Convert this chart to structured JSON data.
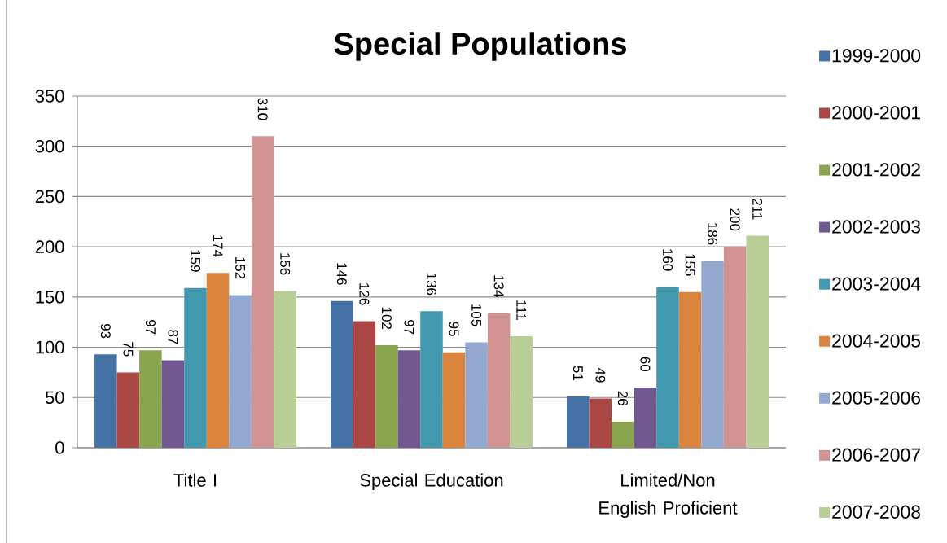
{
  "chart_data": {
    "type": "bar",
    "title": "Special Populations",
    "categories": [
      "Title I",
      "Special Education",
      "Limited/Non English Proficient"
    ],
    "series": [
      {
        "name": "1999-2000",
        "color": "#4572a7",
        "values": [
          93,
          146,
          51
        ]
      },
      {
        "name": "2000-2001",
        "color": "#aa4643",
        "values": [
          75,
          126,
          49
        ]
      },
      {
        "name": "2001-2002",
        "color": "#89a54e",
        "values": [
          97,
          102,
          26
        ]
      },
      {
        "name": "2002-2003",
        "color": "#71588f",
        "values": [
          87,
          97,
          60
        ]
      },
      {
        "name": "2003-2004",
        "color": "#4198af",
        "values": [
          159,
          136,
          160
        ]
      },
      {
        "name": "2004-2005",
        "color": "#db843d",
        "values": [
          174,
          95,
          155
        ]
      },
      {
        "name": "2005-2006",
        "color": "#93a9cf",
        "values": [
          152,
          105,
          186
        ]
      },
      {
        "name": "2006-2007",
        "color": "#d19392",
        "values": [
          310,
          134,
          200
        ]
      },
      {
        "name": "2007-2008",
        "color": "#b9cd96",
        "values": [
          156,
          111,
          211
        ]
      }
    ],
    "ylim": [
      0,
      350
    ],
    "yticks": [
      0,
      50,
      100,
      150,
      200,
      250,
      300,
      350
    ],
    "grid": "y",
    "legend": "right",
    "data_labels": true
  }
}
